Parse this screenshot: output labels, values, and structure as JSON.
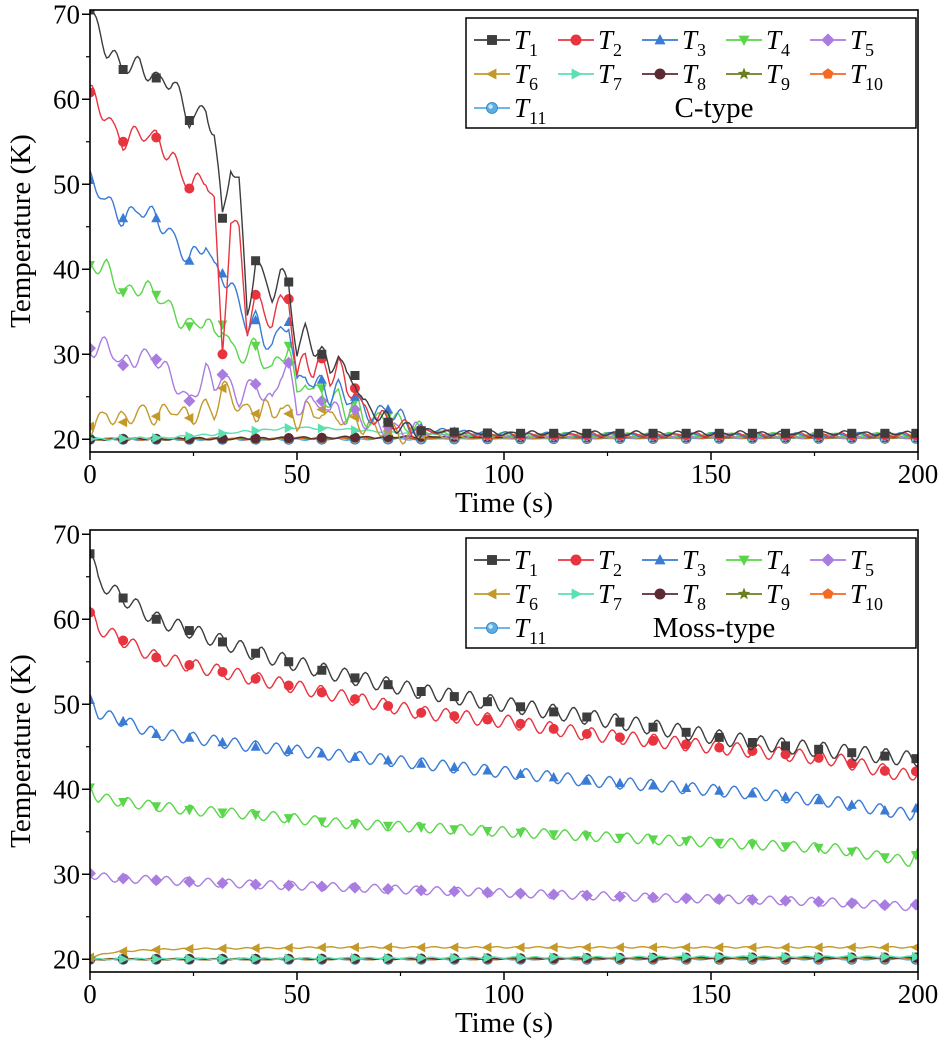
{
  "chart_data": [
    {
      "type": "line",
      "annotation": "C-type",
      "xlabel": "Time (s)",
      "ylabel": "Temperature (K)",
      "xlim": [
        0,
        200
      ],
      "ylim": [
        18.5,
        70.5
      ],
      "xticks": [
        0,
        50,
        100,
        150,
        200
      ],
      "xtick_labels": [
        "0",
        "50",
        "100",
        "150",
        "200"
      ],
      "yticks": [
        20,
        30,
        40,
        50,
        60,
        70
      ],
      "ytick_labels": [
        "20",
        "30",
        "40",
        "50",
        "60",
        "70"
      ],
      "grid": false,
      "legend_position": "top-right",
      "series": [
        {
          "name": "T1",
          "label": "T",
          "sub": "1",
          "color": "#3d3d3d",
          "marker": "square",
          "x": [
            0,
            4,
            8,
            12,
            16,
            20,
            24,
            28,
            30,
            32,
            34,
            36,
            38,
            40,
            42,
            44,
            46,
            48,
            50,
            52,
            54,
            56,
            58,
            60,
            62,
            64,
            66,
            68,
            72,
            76,
            80,
            90,
            100,
            120,
            140,
            160,
            180,
            200
          ],
          "y": [
            70.5,
            66,
            63.5,
            64,
            62.5,
            62,
            57.5,
            59,
            56,
            46,
            52,
            50,
            35,
            41,
            39,
            37,
            39,
            38.5,
            30,
            33,
            31,
            30,
            28,
            30,
            27,
            27.5,
            24,
            23.5,
            22,
            21.5,
            21,
            20.8,
            20.7,
            20.7,
            20.7,
            20.7,
            20.7,
            20.7
          ]
        },
        {
          "name": "T2",
          "label": "T",
          "sub": "2",
          "color": "#e8343f",
          "marker": "circle",
          "x": [
            0,
            4,
            8,
            12,
            16,
            20,
            24,
            28,
            30,
            32,
            34,
            36,
            38,
            40,
            42,
            44,
            46,
            48,
            50,
            52,
            54,
            56,
            58,
            60,
            62,
            64,
            66,
            68,
            72,
            76,
            80,
            90,
            100,
            120,
            140,
            160,
            180,
            200
          ],
          "y": [
            60.8,
            58,
            55,
            56,
            55.5,
            53,
            49.5,
            51,
            48,
            30,
            46,
            44,
            33,
            37,
            35,
            34,
            36,
            36.5,
            27,
            30,
            28,
            29.5,
            27,
            29,
            25.5,
            26,
            23.5,
            23,
            22,
            21.3,
            21,
            20.6,
            20.5,
            20.5,
            20.5,
            20.5,
            20.5,
            20.5
          ]
        },
        {
          "name": "T3",
          "label": "T",
          "sub": "3",
          "color": "#3a7bd5",
          "marker": "triangle",
          "x": [
            0,
            4,
            8,
            12,
            16,
            20,
            24,
            28,
            30,
            32,
            34,
            36,
            38,
            40,
            42,
            44,
            46,
            48,
            50,
            52,
            54,
            56,
            58,
            60,
            62,
            64,
            66,
            68,
            72,
            76,
            80,
            90,
            100,
            120,
            140,
            160,
            180,
            200
          ],
          "y": [
            50.5,
            48,
            46,
            47,
            46,
            44,
            41,
            43,
            40,
            39.5,
            38,
            36,
            33,
            34,
            32,
            31,
            33,
            33.8,
            26,
            28,
            26,
            27,
            25,
            26,
            24.5,
            25,
            23.5,
            23,
            23.5,
            22,
            21.2,
            20.8,
            20.6,
            20.5,
            20.5,
            20.5,
            20.5,
            20.5
          ]
        },
        {
          "name": "T4",
          "label": "T",
          "sub": "4",
          "color": "#5ad64a",
          "marker": "triangle-down",
          "x": [
            0,
            4,
            8,
            12,
            16,
            20,
            24,
            28,
            30,
            32,
            34,
            36,
            38,
            40,
            42,
            44,
            46,
            48,
            50,
            52,
            54,
            56,
            58,
            60,
            62,
            64,
            66,
            68,
            72,
            76,
            80,
            90,
            100,
            120,
            140,
            160,
            180,
            200
          ],
          "y": [
            40.5,
            40,
            37.3,
            38,
            37,
            35,
            33.3,
            34,
            32,
            33.5,
            31,
            30,
            30,
            31,
            29,
            28,
            30,
            31,
            25,
            27,
            25,
            26,
            24,
            25.5,
            23,
            24.5,
            22.5,
            22,
            22.8,
            21.5,
            21,
            20.6,
            20.5,
            20.5,
            20.5,
            20.5,
            20.5,
            20.5
          ]
        },
        {
          "name": "T5",
          "label": "T",
          "sub": "5",
          "color": "#a97de0",
          "marker": "diamond",
          "x": [
            0,
            4,
            8,
            12,
            16,
            20,
            24,
            28,
            30,
            32,
            34,
            36,
            38,
            40,
            42,
            44,
            46,
            48,
            50,
            52,
            54,
            56,
            58,
            60,
            62,
            64,
            66,
            68,
            72,
            76,
            80,
            90,
            100,
            120,
            140,
            160,
            180,
            200
          ],
          "y": [
            30.7,
            31,
            28.7,
            30,
            29.4,
            27,
            24.5,
            28,
            26,
            27.6,
            26,
            25,
            26,
            26.5,
            25,
            24,
            28,
            29,
            23,
            25,
            23.5,
            24.5,
            23,
            24,
            22.5,
            23.5,
            22,
            21.5,
            21.5,
            21,
            20.8,
            20.5,
            20.4,
            20.4,
            20.4,
            20.4,
            20.4,
            20.4
          ]
        },
        {
          "name": "T6",
          "label": "T",
          "sub": "6",
          "color": "#c39a2a",
          "marker": "triangle-left",
          "x": [
            0,
            4,
            8,
            12,
            16,
            20,
            24,
            28,
            30,
            32,
            34,
            36,
            38,
            40,
            42,
            44,
            46,
            48,
            50,
            52,
            54,
            56,
            58,
            60,
            62,
            64,
            66,
            68,
            72,
            76,
            80,
            90,
            100,
            120,
            140,
            160,
            180,
            200
          ],
          "y": [
            21.5,
            23,
            22,
            23.5,
            22.7,
            23.5,
            22.5,
            24,
            23,
            26,
            25,
            24,
            23.5,
            23,
            24,
            22.5,
            24,
            23,
            22,
            24,
            22.5,
            23.5,
            22,
            23,
            22,
            22.6,
            21.5,
            21.2,
            21,
            20.6,
            20.5,
            20.4,
            20.4,
            20.4,
            20.4,
            20.4,
            20.4,
            20.4
          ]
        },
        {
          "name": "T7",
          "label": "T",
          "sub": "7",
          "color": "#5be0b0",
          "marker": "triangle-right",
          "x": [
            0,
            20,
            30,
            40,
            50,
            60,
            70,
            80,
            100,
            120,
            140,
            160,
            180,
            200
          ],
          "y": [
            20.0,
            20.2,
            20.6,
            21.0,
            21.4,
            21.2,
            20.9,
            20.6,
            20.4,
            20.3,
            20.3,
            20.3,
            20.3,
            20.3
          ]
        },
        {
          "name": "T8",
          "label": "T",
          "sub": "8",
          "color": "#5c2a32",
          "marker": "circle",
          "x": [
            0,
            40,
            60,
            80,
            100,
            120,
            140,
            160,
            180,
            200
          ],
          "y": [
            20.0,
            20.1,
            20.2,
            20.3,
            20.25,
            20.25,
            20.25,
            20.25,
            20.25,
            20.25
          ]
        },
        {
          "name": "T9",
          "label": "T",
          "sub": "9",
          "color": "#6b7f1f",
          "marker": "star",
          "x": [
            0,
            40,
            60,
            80,
            100,
            120,
            140,
            160,
            180,
            200
          ],
          "y": [
            20.0,
            20.05,
            20.15,
            20.2,
            20.2,
            20.2,
            20.2,
            20.2,
            20.2,
            20.2
          ]
        },
        {
          "name": "T10",
          "label": "T",
          "sub": "10",
          "color": "#f46a21",
          "marker": "pentagon",
          "x": [
            0,
            40,
            60,
            80,
            100,
            120,
            140,
            160,
            180,
            200
          ],
          "y": [
            20.0,
            20.05,
            20.1,
            20.15,
            20.15,
            20.15,
            20.15,
            20.15,
            20.15,
            20.15
          ]
        },
        {
          "name": "T11",
          "label": "T",
          "sub": "11",
          "color": "#5aaee6",
          "marker": "circle-dot",
          "x": [
            0,
            50,
            100,
            150,
            200
          ],
          "y": [
            20.0,
            20.0,
            20.05,
            20.1,
            20.1
          ]
        }
      ]
    },
    {
      "type": "line",
      "annotation": "Moss-type",
      "xlabel": "Time (s)",
      "ylabel": "Temperature (K)",
      "xlim": [
        0,
        200
      ],
      "ylim": [
        18.5,
        70.5
      ],
      "xticks": [
        0,
        50,
        100,
        150,
        200
      ],
      "xtick_labels": [
        "0",
        "50",
        "100",
        "150",
        "200"
      ],
      "yticks": [
        20,
        30,
        40,
        50,
        60,
        70
      ],
      "ytick_labels": [
        "20",
        "30",
        "40",
        "50",
        "60",
        "70"
      ],
      "grid": false,
      "legend_position": "top-right",
      "series": [
        {
          "name": "T1",
          "label": "T",
          "sub": "1",
          "color": "#3d3d3d",
          "marker": "square",
          "x": [
            0,
            2,
            8,
            16,
            25,
            40,
            60,
            80,
            100,
            120,
            140,
            160,
            180,
            198,
            200
          ],
          "y": [
            67.7,
            64.5,
            62.5,
            60,
            58.5,
            56,
            53.5,
            51.5,
            50,
            48.5,
            47,
            45.5,
            44.5,
            43.6,
            43.6
          ]
        },
        {
          "name": "T2",
          "label": "T",
          "sub": "2",
          "color": "#e8343f",
          "marker": "circle",
          "x": [
            0,
            2,
            8,
            16,
            25,
            40,
            60,
            80,
            100,
            120,
            140,
            160,
            180,
            198,
            200
          ],
          "y": [
            60.8,
            59,
            57.5,
            55.5,
            54.5,
            53,
            51,
            49,
            48,
            46.5,
            45.5,
            44.5,
            43.5,
            41.5,
            42.3
          ]
        },
        {
          "name": "T3",
          "label": "T",
          "sub": "3",
          "color": "#3a7bd5",
          "marker": "triangle",
          "x": [
            0,
            2,
            8,
            16,
            25,
            40,
            60,
            80,
            100,
            120,
            140,
            160,
            180,
            198,
            200
          ],
          "y": [
            50.5,
            49,
            48,
            46.5,
            46,
            45,
            44,
            43,
            42,
            41,
            40.3,
            39.5,
            38.5,
            37,
            38
          ]
        },
        {
          "name": "T4",
          "label": "T",
          "sub": "4",
          "color": "#5ad64a",
          "marker": "triangle-down",
          "x": [
            0,
            2,
            8,
            16,
            25,
            40,
            60,
            80,
            100,
            120,
            140,
            160,
            180,
            198,
            200
          ],
          "y": [
            40.2,
            39,
            38.5,
            38,
            37.5,
            37,
            36,
            35.5,
            35,
            34.5,
            34,
            33.5,
            33,
            31.5,
            32.5
          ]
        },
        {
          "name": "T5",
          "label": "T",
          "sub": "5",
          "color": "#a97de0",
          "marker": "diamond",
          "x": [
            0,
            2,
            8,
            16,
            25,
            40,
            60,
            80,
            100,
            120,
            140,
            160,
            180,
            198,
            200
          ],
          "y": [
            30.1,
            29.7,
            29.5,
            29.3,
            29.1,
            28.8,
            28.5,
            28.1,
            27.8,
            27.5,
            27.2,
            27,
            26.7,
            26.2,
            26.5
          ]
        },
        {
          "name": "T6",
          "label": "T",
          "sub": "6",
          "color": "#c39a2a",
          "marker": "triangle-left",
          "x": [
            0,
            5,
            10,
            20,
            40,
            60,
            80,
            100,
            120,
            140,
            160,
            180,
            200
          ],
          "y": [
            20.2,
            20.8,
            21.0,
            21.2,
            21.3,
            21.4,
            21.4,
            21.4,
            21.4,
            21.4,
            21.4,
            21.4,
            21.4
          ]
        },
        {
          "name": "T7",
          "label": "T",
          "sub": "7",
          "color": "#5be0b0",
          "marker": "triangle-right",
          "x": [
            0,
            50,
            100,
            150,
            200
          ],
          "y": [
            20.0,
            20.1,
            20.2,
            20.3,
            20.3
          ]
        },
        {
          "name": "T8",
          "label": "T",
          "sub": "8",
          "color": "#5c2a32",
          "marker": "circle",
          "x": [
            0,
            50,
            100,
            150,
            200
          ],
          "y": [
            20.0,
            20.05,
            20.1,
            20.2,
            20.2
          ]
        },
        {
          "name": "T9",
          "label": "T",
          "sub": "9",
          "color": "#6b7f1f",
          "marker": "star",
          "x": [
            0,
            50,
            100,
            150,
            200
          ],
          "y": [
            20.0,
            20.02,
            20.05,
            20.1,
            20.15
          ]
        },
        {
          "name": "T10",
          "label": "T",
          "sub": "10",
          "color": "#f46a21",
          "marker": "pentagon",
          "x": [
            0,
            50,
            100,
            150,
            200
          ],
          "y": [
            20.0,
            20.0,
            20.02,
            20.05,
            20.1
          ]
        },
        {
          "name": "T11",
          "label": "T",
          "sub": "11",
          "color": "#5aaee6",
          "marker": "circle-dot",
          "x": [
            0,
            50,
            100,
            150,
            200
          ],
          "y": [
            20.0,
            20.0,
            20.0,
            20.0,
            20.0
          ]
        }
      ]
    }
  ]
}
